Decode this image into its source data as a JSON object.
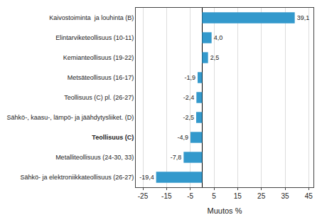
{
  "chart_data": {
    "type": "bar",
    "orientation": "horizontal",
    "categories": [
      "Sähkö- ja elektroniikkateollisuus (26-27)",
      "Metalliteollisuus (24-30, 33)",
      "Teollisuus (C)",
      "Sähkö-, kaasu-, lämpö- ja jäähdytysliiket. (D)",
      "Teollisuus (C) pl. (26-27)",
      "Metsäteollisuus (16-17)",
      "Kemianteollisuus (19-22)",
      "Elintarviketeollisuus (10-11)",
      "Kaivostoiminta  ja louhinta (B)"
    ],
    "values": [
      -19.4,
      -7.8,
      -4.9,
      -2.5,
      -2.4,
      -1.9,
      2.5,
      4.0,
      39.1
    ],
    "value_labels": [
      "-19,4",
      "-7,8",
      "-4,9",
      "-2,5",
      "-2,4",
      "-1,9",
      "2,5",
      "4,0",
      "39,1"
    ],
    "data_labels": true,
    "color": "#3399cc",
    "xlabel": "Muutos %",
    "xlim": [
      -28,
      47
    ],
    "xticks": [
      -25,
      -15,
      -5,
      5,
      15,
      25,
      35,
      45
    ],
    "grid": true
  }
}
